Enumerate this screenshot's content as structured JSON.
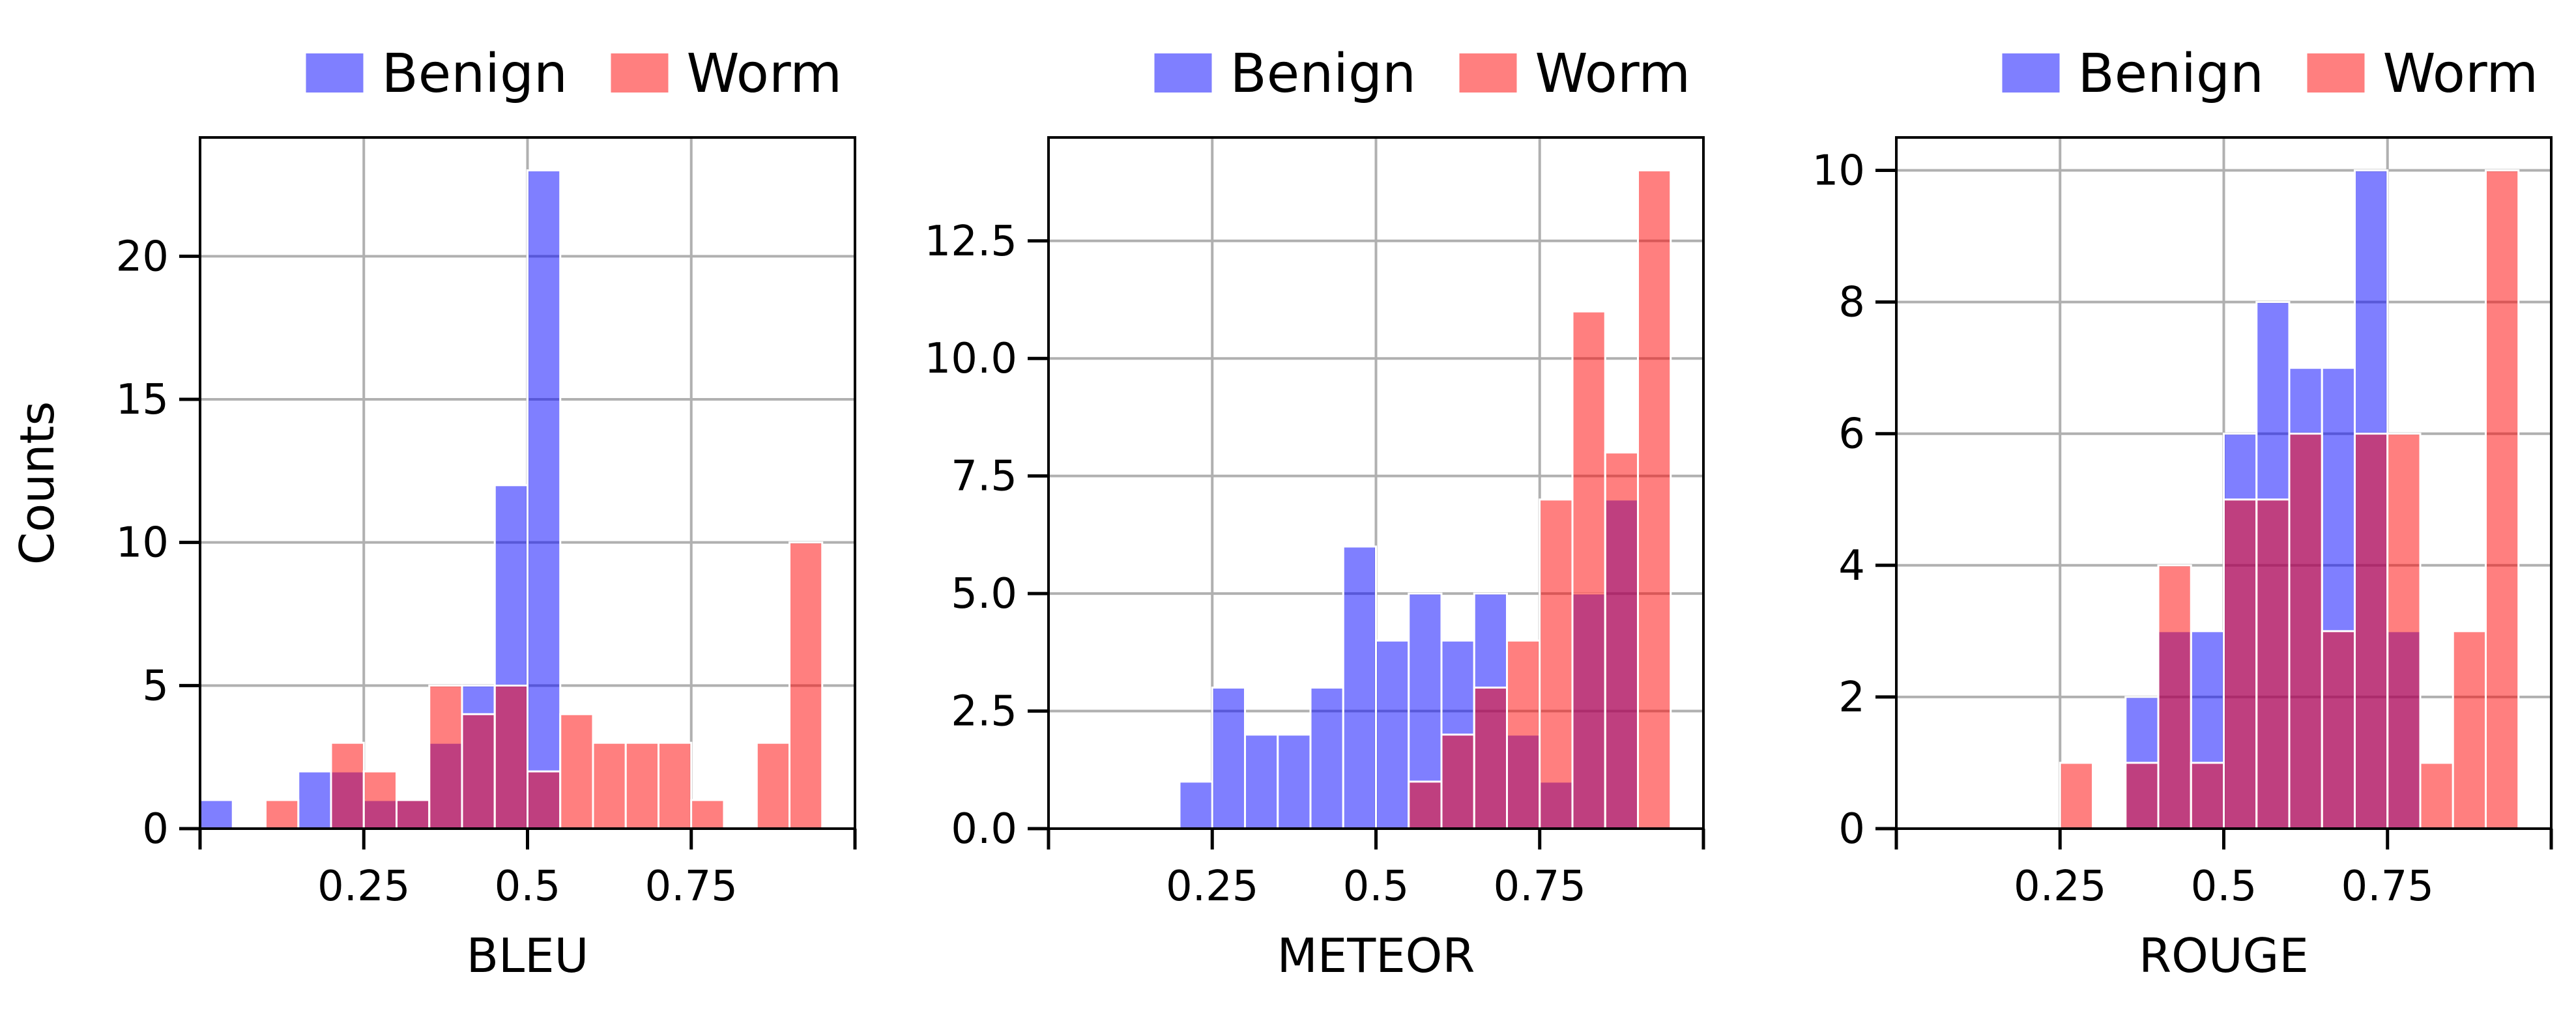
{
  "chart_data": [
    {
      "type": "bar",
      "xlabel": "BLEU",
      "ylabel": "Counts",
      "xlim": [
        0,
        1
      ],
      "ylim": [
        0,
        24.15
      ],
      "xticks": [
        0.25,
        0.5,
        0.75
      ],
      "xtick_labels": [
        "0.25",
        "0.5",
        "0.75"
      ],
      "yticks": [
        0,
        5,
        10,
        15,
        20
      ],
      "ytick_labels": [
        "0",
        "5",
        "10",
        "15",
        "20"
      ],
      "tick_marks_x": [
        0,
        0.25,
        0.5,
        0.75,
        1
      ],
      "grid": true,
      "legend_position": "top-center",
      "bin_width": 0.05,
      "series": [
        {
          "name": "Benign",
          "color": "#0000ff",
          "alpha": 0.5,
          "bins": [
            [
              0,
              0.05
            ],
            [
              0.15,
              0.2
            ],
            [
              0.2,
              0.25
            ],
            [
              0.25,
              0.3
            ],
            [
              0.3,
              0.35
            ],
            [
              0.35,
              0.4
            ],
            [
              0.4,
              0.45
            ],
            [
              0.45,
              0.5
            ],
            [
              0.5,
              0.55
            ]
          ],
          "values": [
            1,
            2,
            2,
            1,
            1,
            3,
            5,
            12,
            23
          ]
        },
        {
          "name": "Worm",
          "color": "#ff0000",
          "alpha": 0.5,
          "bins": [
            [
              0.1,
              0.15
            ],
            [
              0.2,
              0.25
            ],
            [
              0.25,
              0.3
            ],
            [
              0.3,
              0.35
            ],
            [
              0.35,
              0.4
            ],
            [
              0.4,
              0.45
            ],
            [
              0.45,
              0.5
            ],
            [
              0.5,
              0.55
            ],
            [
              0.55,
              0.6
            ],
            [
              0.6,
              0.65
            ],
            [
              0.65,
              0.7
            ],
            [
              0.7,
              0.75
            ],
            [
              0.75,
              0.8
            ],
            [
              0.85,
              0.9
            ],
            [
              0.9,
              0.95
            ]
          ],
          "values": [
            1,
            3,
            2,
            1,
            5,
            4,
            5,
            2,
            4,
            3,
            3,
            3,
            1,
            3,
            10
          ]
        }
      ]
    },
    {
      "type": "bar",
      "xlabel": "METEOR",
      "ylabel": "",
      "xlim": [
        0,
        1
      ],
      "ylim": [
        0,
        14.7
      ],
      "xticks": [
        0.25,
        0.5,
        0.75
      ],
      "xtick_labels": [
        "0.25",
        "0.5",
        "0.75"
      ],
      "yticks": [
        0,
        2.5,
        5,
        7.5,
        10,
        12.5
      ],
      "ytick_labels": [
        "0.0",
        "2.5",
        "5.0",
        "7.5",
        "10.0",
        "12.5"
      ],
      "tick_marks_x": [
        0,
        0.25,
        0.5,
        0.75,
        1
      ],
      "grid": true,
      "legend_position": "top-center",
      "bin_width": 0.05,
      "series": [
        {
          "name": "Benign",
          "color": "#0000ff",
          "alpha": 0.5,
          "bins": [
            [
              0.2,
              0.25
            ],
            [
              0.25,
              0.3
            ],
            [
              0.3,
              0.35
            ],
            [
              0.35,
              0.4
            ],
            [
              0.4,
              0.45
            ],
            [
              0.45,
              0.5
            ],
            [
              0.5,
              0.55
            ],
            [
              0.55,
              0.6
            ],
            [
              0.6,
              0.65
            ],
            [
              0.65,
              0.7
            ],
            [
              0.7,
              0.75
            ],
            [
              0.75,
              0.8
            ],
            [
              0.8,
              0.85
            ],
            [
              0.85,
              0.9
            ]
          ],
          "values": [
            1,
            3,
            2,
            2,
            3,
            6,
            4,
            5,
            4,
            5,
            2,
            1,
            5,
            7
          ]
        },
        {
          "name": "Worm",
          "color": "#ff0000",
          "alpha": 0.5,
          "bins": [
            [
              0.55,
              0.6
            ],
            [
              0.6,
              0.65
            ],
            [
              0.65,
              0.7
            ],
            [
              0.7,
              0.75
            ],
            [
              0.75,
              0.8
            ],
            [
              0.8,
              0.85
            ],
            [
              0.85,
              0.9
            ],
            [
              0.9,
              0.95
            ]
          ],
          "values": [
            1,
            2,
            3,
            4,
            7,
            11,
            8,
            14
          ]
        }
      ]
    },
    {
      "type": "bar",
      "xlabel": "ROUGE",
      "ylabel": "",
      "xlim": [
        0,
        1
      ],
      "ylim": [
        0,
        10.5
      ],
      "xticks": [
        0.25,
        0.5,
        0.75
      ],
      "xtick_labels": [
        "0.25",
        "0.5",
        "0.75"
      ],
      "yticks": [
        0,
        2,
        4,
        6,
        8,
        10
      ],
      "ytick_labels": [
        "0",
        "2",
        "4",
        "6",
        "8",
        "10"
      ],
      "tick_marks_x": [
        0,
        0.25,
        0.5,
        0.75,
        1
      ],
      "grid": true,
      "legend_position": "top-center",
      "bin_width": 0.05,
      "series": [
        {
          "name": "Benign",
          "color": "#0000ff",
          "alpha": 0.5,
          "bins": [
            [
              0.35,
              0.4
            ],
            [
              0.4,
              0.45
            ],
            [
              0.45,
              0.5
            ],
            [
              0.5,
              0.55
            ],
            [
              0.55,
              0.6
            ],
            [
              0.6,
              0.65
            ],
            [
              0.65,
              0.7
            ],
            [
              0.7,
              0.75
            ],
            [
              0.75,
              0.8
            ]
          ],
          "values": [
            2,
            3,
            3,
            6,
            8,
            7,
            7,
            10,
            3
          ]
        },
        {
          "name": "Worm",
          "color": "#ff0000",
          "alpha": 0.5,
          "bins": [
            [
              0.25,
              0.3
            ],
            [
              0.35,
              0.4
            ],
            [
              0.4,
              0.45
            ],
            [
              0.45,
              0.5
            ],
            [
              0.5,
              0.55
            ],
            [
              0.55,
              0.6
            ],
            [
              0.6,
              0.65
            ],
            [
              0.65,
              0.7
            ],
            [
              0.7,
              0.75
            ],
            [
              0.75,
              0.8
            ],
            [
              0.8,
              0.85
            ],
            [
              0.85,
              0.9
            ],
            [
              0.9,
              0.95
            ]
          ],
          "values": [
            1,
            1,
            4,
            1,
            5,
            5,
            6,
            3,
            6,
            6,
            1,
            3,
            10
          ]
        }
      ]
    }
  ]
}
